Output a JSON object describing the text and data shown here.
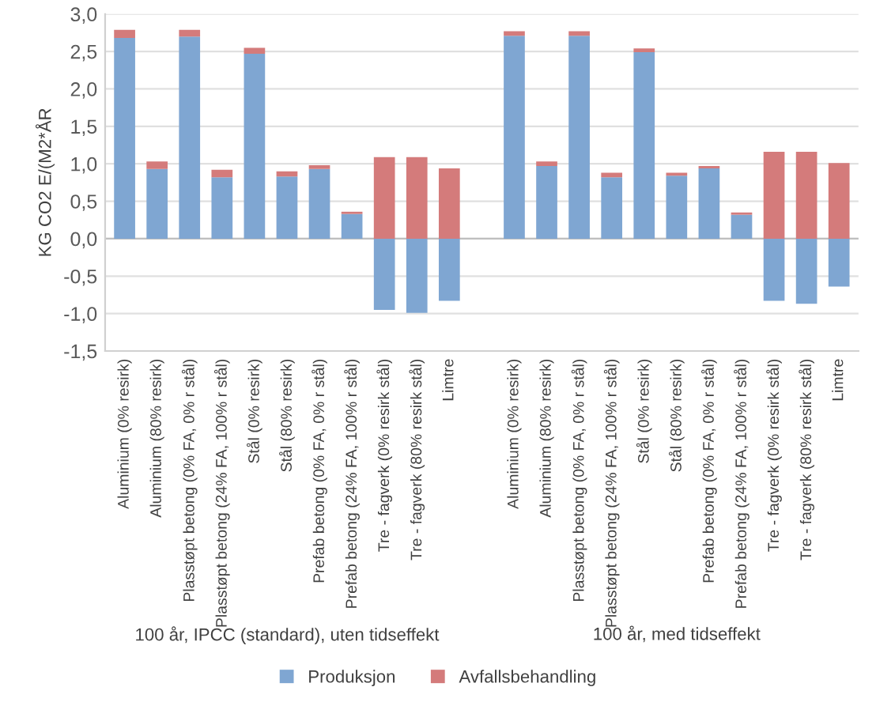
{
  "chart_data": {
    "type": "bar",
    "stacked": true,
    "ylabel": "KG CO2 E/(M2*ÅR",
    "categories": [
      "Aluminium (0% resirk)",
      "Aluminium (80% resirk)",
      "Plasstøpt betong (0% FA, 0% r stål)",
      "Plasstøpt betong (24% FA, 100% r stål)",
      "Stål (0% resirk)",
      "Stål (80% resirk)",
      "Prefab betong (0% FA, 0% r stål)",
      "Prefab betong (24% FA, 100% r stål)",
      "Tre - fagverk (0% resirk stål)",
      "Tre - fagverk (80% resirk stål)",
      "Limtre",
      null,
      "Aluminium (0% resirk)",
      "Aluminium (80% resirk)",
      "Plasstøpt betong (0% FA, 0% r stål)",
      "Plasstøpt betong (24% FA, 100% r stål)",
      "Stål (0% resirk)",
      "Stål (80% resirk)",
      "Prefab betong (0% FA, 0% r stål)",
      "Prefab betong (24% FA, 100% r stål)",
      "Tre - fagverk (0% resirk stål)",
      "Tre - fagverk (80% resirk stål)",
      "Limtre"
    ],
    "series": [
      {
        "name": "Produksjon",
        "color": "#7fa6d2",
        "values": [
          2.68,
          0.93,
          2.7,
          0.82,
          2.47,
          0.83,
          0.93,
          0.33,
          -0.95,
          -0.99,
          -0.83,
          null,
          2.71,
          0.97,
          2.71,
          0.82,
          2.49,
          0.84,
          0.94,
          0.32,
          -0.83,
          -0.87,
          -0.64
        ]
      },
      {
        "name": "Avfallsbehandling",
        "color": "#d47b7b",
        "values": [
          0.11,
          0.1,
          0.09,
          0.1,
          0.08,
          0.07,
          0.05,
          0.03,
          1.09,
          1.09,
          0.94,
          null,
          0.06,
          0.06,
          0.06,
          0.06,
          0.05,
          0.04,
          0.03,
          0.03,
          1.16,
          1.16,
          1.01
        ]
      }
    ],
    "ylim": [
      -1.5,
      3.0
    ],
    "yticks": [
      {
        "value": -1.5,
        "label": "-1,5"
      },
      {
        "value": -1.0,
        "label": "-1,0"
      },
      {
        "value": -0.5,
        "label": "-0,5"
      },
      {
        "value": 0.0,
        "label": "0,0"
      },
      {
        "value": 0.5,
        "label": "0,5"
      },
      {
        "value": 1.0,
        "label": "1,0"
      },
      {
        "value": 1.5,
        "label": "1,5"
      },
      {
        "value": 2.0,
        "label": "2,0"
      },
      {
        "value": 2.5,
        "label": "2,5"
      },
      {
        "value": 3.0,
        "label": "3,0"
      }
    ],
    "annotations": [
      "100 år, IPCC (standard), uten tidseffekt",
      "100 år, med tidseffekt"
    ],
    "grid": "y",
    "legend": "bottom"
  }
}
